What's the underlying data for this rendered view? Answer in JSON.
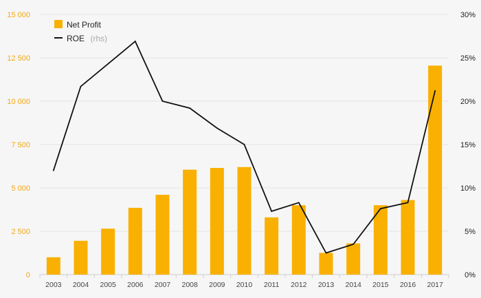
{
  "chart_data": {
    "type": "bar",
    "categories": [
      "2003",
      "2004",
      "2005",
      "2006",
      "2007",
      "2008",
      "2009",
      "2010",
      "2011",
      "2012",
      "2013",
      "2014",
      "2015",
      "2016",
      "2017"
    ],
    "series": [
      {
        "name": "Net Profit",
        "type": "bar",
        "axis": "left",
        "color": "#f9b000",
        "values": [
          1000,
          1950,
          2650,
          3850,
          4600,
          6050,
          6150,
          6200,
          3300,
          4000,
          1250,
          1800,
          4000,
          4300,
          12050
        ]
      },
      {
        "name": "ROE",
        "name_suffix": "(rhs)",
        "type": "line",
        "axis": "right",
        "color": "#111111",
        "values": [
          12.0,
          21.7,
          24.3,
          26.9,
          20.0,
          19.2,
          16.9,
          15.0,
          7.3,
          8.3,
          2.5,
          3.5,
          7.6,
          8.3,
          21.2
        ]
      }
    ],
    "y_left": {
      "ylim": [
        0,
        15000
      ],
      "ticks": [
        0,
        2500,
        5000,
        7500,
        10000,
        12500,
        15000
      ],
      "tick_labels": [
        "0",
        "2 500",
        "5 000",
        "7 500",
        "10 000",
        "12 500",
        "15 000"
      ]
    },
    "y_right": {
      "ylim": [
        0,
        30
      ],
      "ticks": [
        0,
        5,
        10,
        15,
        20,
        25,
        30
      ],
      "tick_labels": [
        "0%",
        "5%",
        "10%",
        "15%",
        "20%",
        "25%",
        "30%"
      ]
    },
    "grid": true,
    "legend": "top-left",
    "xlabel": "",
    "ylabel": "",
    "title": ""
  }
}
